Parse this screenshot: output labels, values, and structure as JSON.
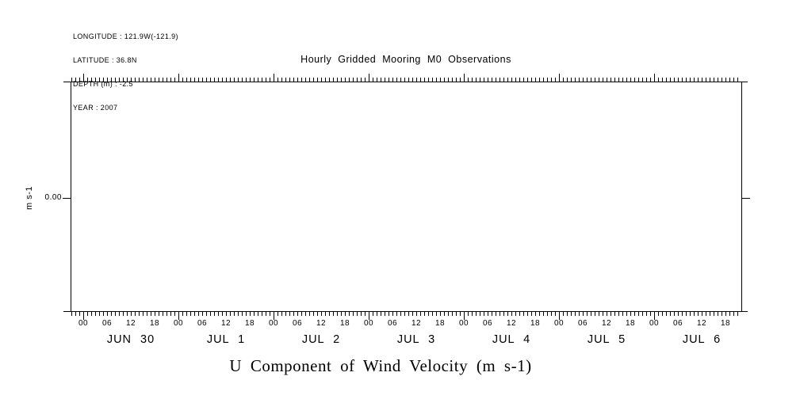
{
  "header": {
    "meta_lines": [
      "LONGITUDE : 121.9W(-121.9)",
      "LATITUDE : 36.8N",
      "DEPTH (m) : -2.5",
      "YEAR : 2007"
    ]
  },
  "chart_data": {
    "type": "line",
    "title": "Hourly Gridded Mooring M0 Observations",
    "variable_label": "U Component of Wind Velocity (m s-1)",
    "ylabel": "m s-1",
    "y_tick_labels": [
      "0.00"
    ],
    "x_hour_labels": [
      "00",
      "06",
      "12",
      "18"
    ],
    "day_labels": [
      "JUN 30",
      "JUL 1",
      "JUL 2",
      "JUL 3",
      "JUL 4",
      "JUL 5",
      "JUL 6"
    ],
    "x_minor_tick_interval_hours": 1,
    "x_major_tick_interval_hours": 24,
    "x_label_interval_hours": 6,
    "grid": false,
    "series": [],
    "plot_area_empty": true
  },
  "colors": {
    "foreground": "#000000",
    "background": "#ffffff"
  }
}
